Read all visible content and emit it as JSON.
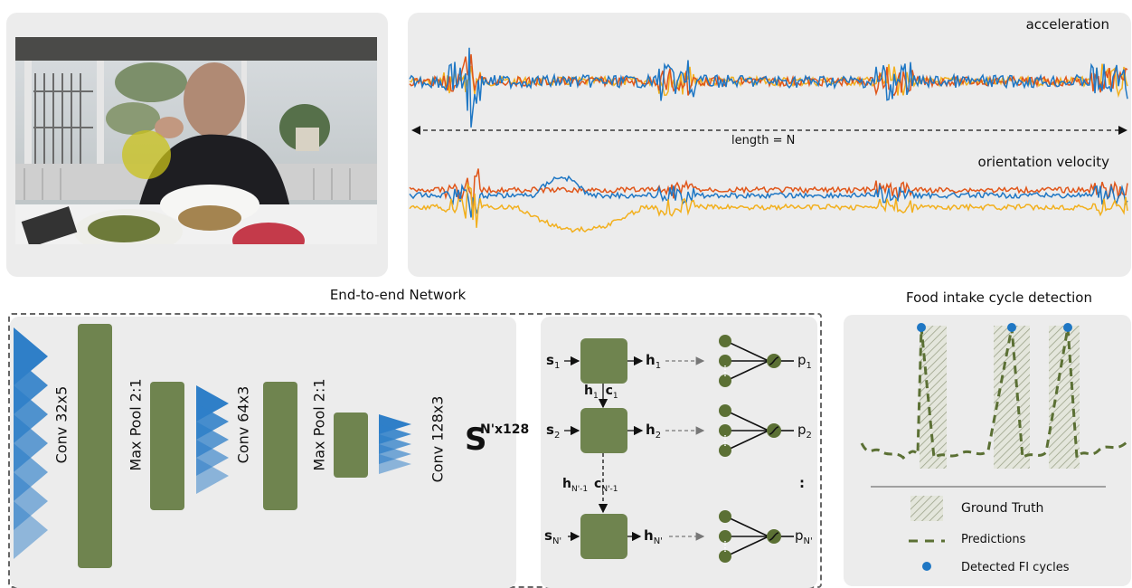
{
  "video_panel": {
    "description_icon": "camera-frame-icon"
  },
  "signals": {
    "acceleration_label": "acceleration",
    "length_label": "length = N",
    "orientation_label": "orientation velocity",
    "colors": {
      "blue": "#1f77c4",
      "orange": "#e0561a",
      "yellow": "#f2b01e"
    }
  },
  "network": {
    "title": "End-to-end Network",
    "layers": [
      "Conv 32x5",
      "Max Pool 2:1",
      "Conv 64x3",
      "Max Pool 2:1",
      "Conv 128x3"
    ],
    "output": {
      "symbol": "S",
      "dims": "N'x128"
    }
  },
  "lstm": {
    "rows": [
      {
        "input": "s",
        "input_sub": "1",
        "hidden": "h",
        "hidden_sub": "1",
        "prob": "p",
        "prob_sub": "1"
      },
      {
        "input": "s",
        "input_sub": "2",
        "hidden": "h",
        "hidden_sub": "2",
        "prob": "p",
        "prob_sub": "2"
      },
      {
        "input": "s",
        "input_sub": "N'",
        "hidden": "h",
        "hidden_sub": "N'",
        "prob": "p",
        "prob_sub": "N'"
      }
    ],
    "carry_1": {
      "h": "h",
      "h_sub": "1",
      "c": "c",
      "c_sub": "1"
    },
    "carry_2": {
      "h": "h",
      "h_sub": "N'-1",
      "c": "c",
      "c_sub": "N'-1"
    },
    "ellipsis": ":"
  },
  "detection": {
    "title": "Food intake cycle detection",
    "legend": {
      "ground_truth": "Ground Truth",
      "predictions": "Predictions",
      "detected": "Detected FI cycles"
    },
    "colors": {
      "prediction": "#5b7034",
      "detected": "#1f77c4"
    }
  }
}
